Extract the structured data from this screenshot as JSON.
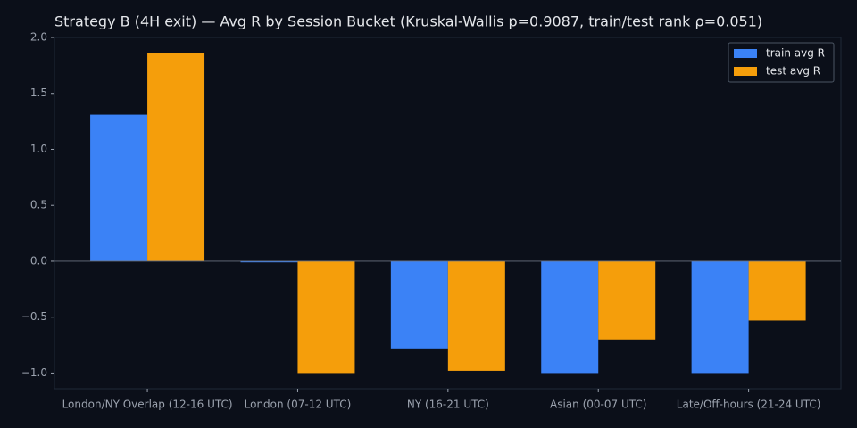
{
  "chart_data": {
    "type": "bar",
    "title": "Strategy B (4H exit) — Avg R by Session Bucket (Kruskal-Wallis p=0.9087, train/test rank ρ=0.051)",
    "categories": [
      "London/NY Overlap (12-16 UTC)",
      "London (07-12 UTC)",
      "NY (16-21 UTC)",
      "Asian (00-07 UTC)",
      "Late/Off-hours (21-24 UTC)"
    ],
    "series": [
      {
        "name": "train avg R",
        "color": "#3b82f6",
        "values": [
          1.31,
          -0.01,
          -0.78,
          -1.0,
          -1.0
        ]
      },
      {
        "name": "test avg R",
        "color": "#f59e0b",
        "values": [
          1.86,
          -1.0,
          -0.98,
          -0.7,
          -0.53
        ]
      }
    ],
    "ylim": [
      -1.14,
      2.0
    ],
    "yticks": [
      {
        "value": 2.0,
        "label": "2.0"
      },
      {
        "value": 1.5,
        "label": "1.5"
      },
      {
        "value": 1.0,
        "label": "1.0"
      },
      {
        "value": 0.5,
        "label": "0.5"
      },
      {
        "value": 0.0,
        "label": "0.0"
      },
      {
        "value": -0.5,
        "label": "−0.5"
      },
      {
        "value": -1.0,
        "label": "−1.0"
      }
    ],
    "legend": "upper right"
  }
}
